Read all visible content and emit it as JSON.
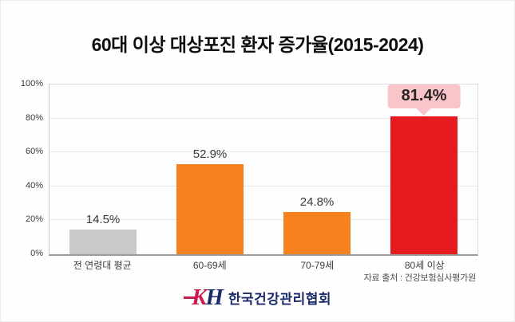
{
  "title": "60대 이상 대상포진 환자 증가율(2015-2024)",
  "chart_data": {
    "type": "bar",
    "title": "60대 이상 대상포진 환자 증가율(2015-2024)",
    "categories": [
      "전 연령대 평균",
      "60-69세",
      "70-79세",
      "80세 이상"
    ],
    "values": [
      14.5,
      52.9,
      24.8,
      81.4
    ],
    "value_labels": [
      "14.5%",
      "52.9%",
      "24.8%",
      "81.4%"
    ],
    "bar_colors": [
      "#cacaca",
      "#f5821e",
      "#f5821e",
      "#e61b20"
    ],
    "highlight_index": 3,
    "highlight_label": "81.4%",
    "xlabel": "",
    "ylabel": "",
    "ylim": [
      0,
      100
    ],
    "yticks": [
      "100%",
      "80%",
      "60%",
      "40%",
      "20%",
      "0%"
    ],
    "grid": true,
    "legend": false
  },
  "source_note": "자료 출처 : 건강보험심사평가원",
  "footer_logo": {
    "monogram_k": "K",
    "monogram_h": "H",
    "org_name": "한국건강관리협회"
  },
  "colors": {
    "bar_gray": "#cacaca",
    "bar_orange": "#f5821e",
    "bar_red": "#e61b20",
    "badge_pink": "#f9c4ca",
    "badge_text": "#262626",
    "logo_crimson": "#cc1b4b",
    "logo_navy": "#1c2b69"
  }
}
